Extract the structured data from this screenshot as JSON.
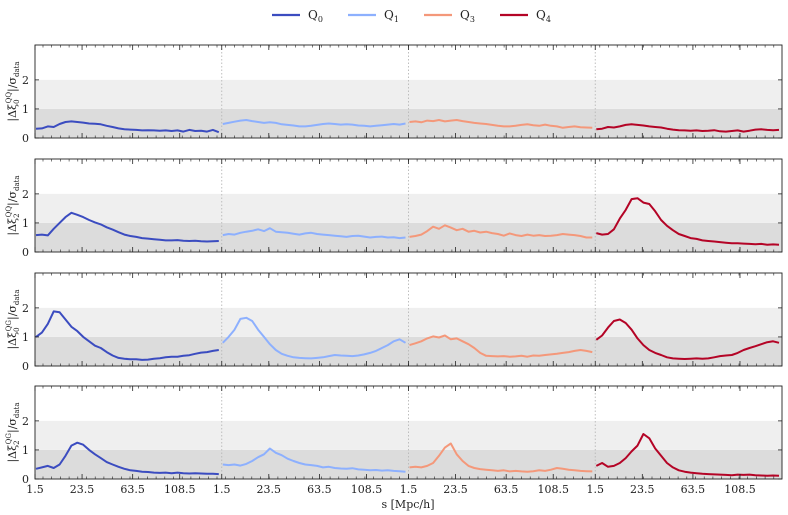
{
  "chart_data": {
    "type": "line",
    "xlabel": "s [Mpc/h]",
    "xticklabels": [
      "1.5",
      "23.5",
      "63.5",
      "108.5"
    ],
    "ylim": [
      0,
      3.2
    ],
    "yticks": [
      0,
      1,
      2
    ],
    "bands": [
      {
        "from": 0,
        "to": 1,
        "color": "#dcdcdc"
      },
      {
        "from": 1,
        "to": 2,
        "color": "#efefef"
      }
    ],
    "legend": {
      "placement": "top-center"
    },
    "series": [
      {
        "name": "Q$_0$",
        "label_main": "Q",
        "label_sub": "0",
        "color": "#3b4cc0"
      },
      {
        "name": "Q$_1$",
        "label_main": "Q",
        "label_sub": "1",
        "color": "#8db0fe"
      },
      {
        "name": "Q$_3$",
        "label_main": "Q",
        "label_sub": "3",
        "color": "#f4987a"
      },
      {
        "name": "Q$_4$",
        "label_main": "Q",
        "label_sub": "4",
        "color": "#b40426"
      }
    ],
    "panels": [
      {
        "ylabel": "|Δξ₀^QQ|/σ_data",
        "ylabel_parts": {
          "xi_sub": "0",
          "xi_sup": "QQ",
          "sigma_sub": "data"
        },
        "data": [
          [
            0.32,
            0.33,
            0.4,
            0.38,
            0.48,
            0.55,
            0.57,
            0.55,
            0.53,
            0.5,
            0.49,
            0.47,
            0.42,
            0.38,
            0.33,
            0.3,
            0.29,
            0.28,
            0.26,
            0.27,
            0.26,
            0.25,
            0.26,
            0.24,
            0.26,
            0.22,
            0.28,
            0.24,
            0.25,
            0.22,
            0.28,
            0.2
          ],
          [
            0.48,
            0.52,
            0.56,
            0.6,
            0.62,
            0.58,
            0.55,
            0.52,
            0.54,
            0.52,
            0.47,
            0.45,
            0.43,
            0.4,
            0.4,
            0.42,
            0.45,
            0.48,
            0.5,
            0.48,
            0.46,
            0.47,
            0.46,
            0.43,
            0.42,
            0.4,
            0.42,
            0.44,
            0.46,
            0.48,
            0.46,
            0.5
          ],
          [
            0.55,
            0.57,
            0.54,
            0.6,
            0.58,
            0.62,
            0.57,
            0.6,
            0.62,
            0.58,
            0.55,
            0.52,
            0.5,
            0.48,
            0.45,
            0.42,
            0.4,
            0.4,
            0.42,
            0.45,
            0.47,
            0.44,
            0.42,
            0.46,
            0.42,
            0.4,
            0.35,
            0.38,
            0.4,
            0.37,
            0.36,
            0.35
          ],
          [
            0.3,
            0.32,
            0.38,
            0.36,
            0.4,
            0.45,
            0.47,
            0.45,
            0.43,
            0.4,
            0.38,
            0.36,
            0.32,
            0.29,
            0.27,
            0.26,
            0.25,
            0.26,
            0.24,
            0.25,
            0.27,
            0.23,
            0.22,
            0.24,
            0.26,
            0.22,
            0.25,
            0.29,
            0.3,
            0.28,
            0.27,
            0.28
          ]
        ]
      },
      {
        "ylabel": "|Δξ₂^QQ|/σ_data",
        "ylabel_parts": {
          "xi_sub": "2",
          "xi_sup": "QQ",
          "sigma_sub": "data"
        },
        "data": [
          [
            0.58,
            0.6,
            0.57,
            0.8,
            1.0,
            1.2,
            1.35,
            1.28,
            1.2,
            1.1,
            1.02,
            0.95,
            0.85,
            0.77,
            0.68,
            0.6,
            0.55,
            0.52,
            0.48,
            0.46,
            0.44,
            0.42,
            0.4,
            0.4,
            0.41,
            0.39,
            0.38,
            0.39,
            0.37,
            0.36,
            0.37,
            0.38
          ],
          [
            0.58,
            0.62,
            0.6,
            0.66,
            0.7,
            0.73,
            0.78,
            0.72,
            0.82,
            0.7,
            0.68,
            0.66,
            0.63,
            0.6,
            0.64,
            0.66,
            0.62,
            0.6,
            0.58,
            0.56,
            0.54,
            0.52,
            0.55,
            0.56,
            0.53,
            0.5,
            0.52,
            0.53,
            0.5,
            0.51,
            0.48,
            0.5
          ],
          [
            0.52,
            0.55,
            0.6,
            0.72,
            0.87,
            0.8,
            0.92,
            0.84,
            0.75,
            0.8,
            0.7,
            0.73,
            0.67,
            0.7,
            0.65,
            0.62,
            0.56,
            0.64,
            0.58,
            0.55,
            0.6,
            0.56,
            0.58,
            0.55,
            0.56,
            0.58,
            0.62,
            0.6,
            0.58,
            0.55,
            0.5,
            0.5
          ],
          [
            0.65,
            0.6,
            0.62,
            0.78,
            1.15,
            1.45,
            1.82,
            1.85,
            1.7,
            1.65,
            1.4,
            1.1,
            0.9,
            0.75,
            0.62,
            0.55,
            0.48,
            0.45,
            0.4,
            0.38,
            0.36,
            0.34,
            0.32,
            0.3,
            0.3,
            0.29,
            0.28,
            0.27,
            0.28,
            0.25,
            0.26,
            0.25
          ]
        ]
      },
      {
        "ylabel": "|Δξ₀^QG|/σ_data",
        "ylabel_parts": {
          "xi_sub": "0",
          "xi_sup": "QG",
          "sigma_sub": "data"
        },
        "data": [
          [
            1.0,
            1.15,
            1.45,
            1.88,
            1.85,
            1.6,
            1.35,
            1.2,
            1.0,
            0.85,
            0.7,
            0.62,
            0.48,
            0.36,
            0.28,
            0.25,
            0.23,
            0.23,
            0.21,
            0.22,
            0.25,
            0.27,
            0.3,
            0.32,
            0.32,
            0.35,
            0.37,
            0.42,
            0.46,
            0.48,
            0.52,
            0.55
          ],
          [
            0.8,
            1.0,
            1.25,
            1.62,
            1.66,
            1.55,
            1.25,
            1.0,
            0.75,
            0.55,
            0.42,
            0.35,
            0.3,
            0.28,
            0.27,
            0.26,
            0.28,
            0.3,
            0.34,
            0.38,
            0.36,
            0.35,
            0.34,
            0.36,
            0.4,
            0.45,
            0.52,
            0.62,
            0.72,
            0.85,
            0.92,
            0.8
          ],
          [
            0.72,
            0.78,
            0.85,
            0.95,
            1.02,
            0.98,
            1.05,
            0.92,
            0.95,
            0.85,
            0.75,
            0.62,
            0.45,
            0.35,
            0.34,
            0.33,
            0.34,
            0.32,
            0.33,
            0.35,
            0.32,
            0.36,
            0.35,
            0.38,
            0.4,
            0.42,
            0.45,
            0.48,
            0.52,
            0.55,
            0.52,
            0.48
          ],
          [
            0.9,
            1.05,
            1.32,
            1.55,
            1.6,
            1.48,
            1.25,
            0.95,
            0.72,
            0.55,
            0.45,
            0.38,
            0.3,
            0.26,
            0.25,
            0.24,
            0.25,
            0.26,
            0.25,
            0.26,
            0.3,
            0.34,
            0.36,
            0.38,
            0.45,
            0.55,
            0.62,
            0.68,
            0.75,
            0.82,
            0.85,
            0.8
          ]
        ]
      },
      {
        "ylabel": "|Δξ₂^QG|/σ_data",
        "ylabel_parts": {
          "xi_sub": "2",
          "xi_sup": "QG",
          "sigma_sub": "data"
        },
        "data": [
          [
            0.35,
            0.4,
            0.45,
            0.38,
            0.5,
            0.8,
            1.15,
            1.25,
            1.18,
            1.0,
            0.85,
            0.72,
            0.58,
            0.5,
            0.42,
            0.35,
            0.3,
            0.28,
            0.25,
            0.24,
            0.22,
            0.21,
            0.22,
            0.2,
            0.22,
            0.2,
            0.19,
            0.2,
            0.19,
            0.18,
            0.18,
            0.17
          ],
          [
            0.5,
            0.48,
            0.5,
            0.46,
            0.52,
            0.62,
            0.75,
            0.85,
            1.05,
            0.9,
            0.82,
            0.7,
            0.62,
            0.55,
            0.5,
            0.48,
            0.45,
            0.4,
            0.42,
            0.38,
            0.36,
            0.35,
            0.37,
            0.33,
            0.32,
            0.3,
            0.31,
            0.29,
            0.3,
            0.28,
            0.27,
            0.25
          ],
          [
            0.4,
            0.42,
            0.4,
            0.45,
            0.55,
            0.8,
            1.08,
            1.22,
            0.85,
            0.62,
            0.45,
            0.38,
            0.34,
            0.32,
            0.3,
            0.28,
            0.3,
            0.26,
            0.28,
            0.26,
            0.25,
            0.27,
            0.3,
            0.28,
            0.32,
            0.38,
            0.35,
            0.32,
            0.3,
            0.28,
            0.27,
            0.26
          ],
          [
            0.45,
            0.55,
            0.42,
            0.45,
            0.55,
            0.72,
            0.95,
            1.15,
            1.55,
            1.4,
            1.05,
            0.8,
            0.55,
            0.4,
            0.3,
            0.25,
            0.22,
            0.2,
            0.18,
            0.17,
            0.16,
            0.15,
            0.14,
            0.13,
            0.15,
            0.14,
            0.15,
            0.13,
            0.12,
            0.11,
            0.12,
            0.11
          ]
        ]
      }
    ]
  }
}
